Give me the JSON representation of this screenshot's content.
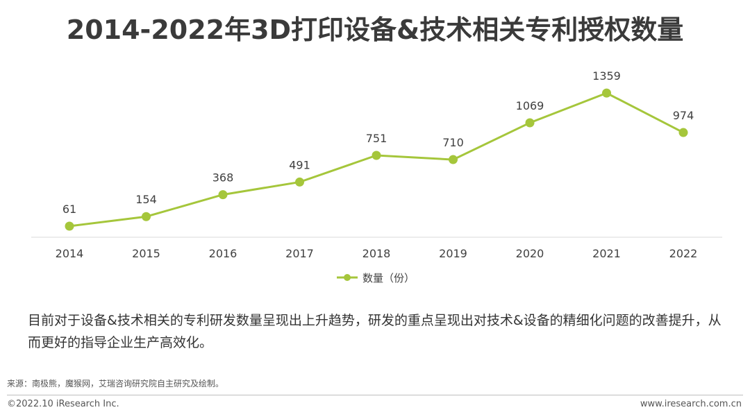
{
  "title": "2014-2022年3D打印设备&技术相关专利授权数量",
  "chart_data": {
    "type": "line",
    "title": "2014-2022年3D打印设备&技术相关专利授权数量",
    "categories": [
      "2014",
      "2015",
      "2016",
      "2017",
      "2018",
      "2019",
      "2020",
      "2021",
      "2022"
    ],
    "series": [
      {
        "name": "数量（份）",
        "values": [
          61,
          154,
          368,
          491,
          751,
          710,
          1069,
          1359,
          974
        ]
      }
    ],
    "color": "#a5c63b",
    "ylim": [
      0,
      1500
    ],
    "legend_position": "bottom",
    "grid": false
  },
  "description": "目前对于设备&技术相关的专利研发数量呈现出上升趋势，研发的重点呈现出对技术&设备的精细化问题的改善提升，从而更好的指导企业生产高效化。",
  "source": "来源：南极熊，魔猴网，艾瑞咨询研究院自主研究及绘制。",
  "footer": {
    "copyright": "©2022.10 iResearch Inc.",
    "website": "www.iresearch.com.cn"
  }
}
